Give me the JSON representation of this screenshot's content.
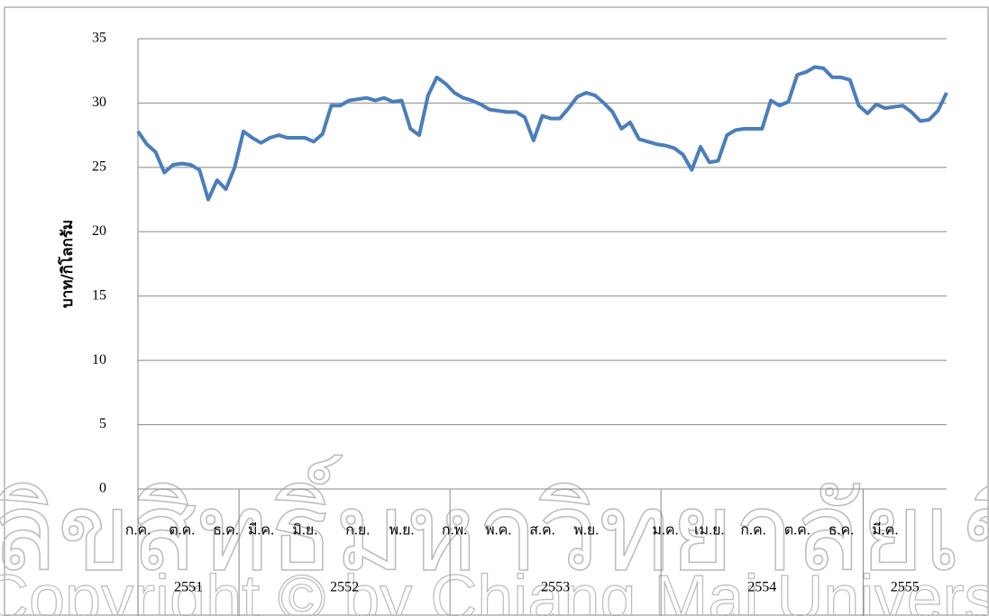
{
  "chart_data": {
    "type": "line",
    "y_label": "บาท/กิโลกรัม",
    "categories": [
      "ก.ค.",
      null,
      null,
      null,
      null,
      "ต.ค.",
      null,
      null,
      null,
      null,
      "ธ.ค.",
      null,
      null,
      null,
      "มี.ค.",
      null,
      null,
      null,
      null,
      "มิ.ย.",
      null,
      null,
      null,
      null,
      null,
      "ก.ย.",
      null,
      null,
      null,
      null,
      "พ.ย.",
      null,
      null,
      null,
      null,
      null,
      "ก.พ.",
      null,
      null,
      null,
      null,
      "พ.ค.",
      null,
      null,
      null,
      null,
      "ส.ค.",
      null,
      null,
      null,
      null,
      "พ.ย.",
      null,
      null,
      null,
      null,
      null,
      null,
      null,
      null,
      "ม.ค.",
      null,
      null,
      null,
      null,
      "เม.ย.",
      null,
      null,
      null,
      null,
      "ก.ค.",
      null,
      null,
      null,
      null,
      "ต.ค.",
      null,
      null,
      null,
      null,
      "ธ.ค.",
      null,
      null,
      null,
      null,
      "มี.ค.",
      null,
      null,
      null,
      null,
      null,
      null,
      null
    ],
    "year_groups": [
      {
        "label": "2551",
        "from": 0,
        "to": 11
      },
      {
        "label": "2552",
        "from": 12,
        "to": 35
      },
      {
        "label": "2553",
        "from": 36,
        "to": 59
      },
      {
        "label": "2554",
        "from": 60,
        "to": 82
      },
      {
        "label": "2555",
        "from": 83,
        "to": 92
      }
    ],
    "series": [
      {
        "color": "#4a7ebb",
        "values": [
          27.8,
          26.8,
          26.2,
          24.6,
          25.2,
          25.3,
          25.2,
          24.8,
          22.5,
          24.0,
          23.3,
          25.0,
          27.8,
          27.3,
          26.9,
          27.3,
          27.5,
          27.3,
          27.3,
          27.3,
          27.0,
          27.6,
          29.8,
          29.8,
          30.2,
          30.3,
          30.4,
          30.2,
          30.4,
          30.1,
          30.2,
          28.0,
          27.5,
          30.6,
          32.0,
          31.5,
          30.8,
          30.4,
          30.2,
          29.9,
          29.5,
          29.4,
          29.3,
          29.3,
          28.9,
          27.1,
          29.0,
          28.8,
          28.8,
          29.6,
          30.5,
          30.8,
          30.6,
          30.0,
          29.3,
          28.0,
          28.5,
          27.2,
          27.0,
          26.8,
          26.7,
          26.5,
          26.0,
          24.8,
          26.6,
          25.4,
          25.5,
          27.5,
          27.9,
          28.0,
          28.0,
          28.0,
          30.2,
          29.8,
          30.1,
          32.2,
          32.4,
          32.8,
          32.7,
          32.0,
          32.0,
          31.8,
          29.8,
          29.2,
          29.9,
          29.6,
          29.7,
          29.8,
          29.3,
          28.6,
          28.7,
          29.4,
          30.8
        ]
      }
    ],
    "ylim": [
      0,
      35
    ],
    "yticks": [
      0,
      5,
      10,
      15,
      20,
      25,
      30,
      35
    ],
    "grid": true
  },
  "watermark": [
    "ลิขสิทธิ์มหาวิทยาลัยเชียงใหม่",
    "Copyright © by Chiang Mai University"
  ]
}
